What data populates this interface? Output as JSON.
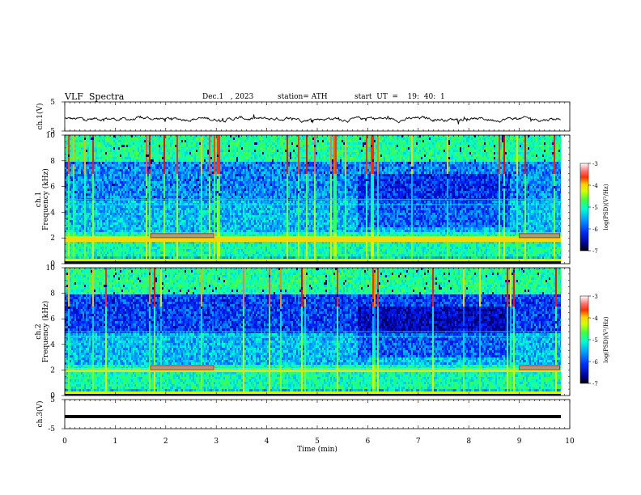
{
  "header": {
    "title": "VLF  Spectra",
    "date": "Dec.1   , 2023",
    "station": "station= ATH",
    "start_ut": "start  UT  =    19:  40:  1"
  },
  "chart_data": [
    {
      "type": "line",
      "panel": "ch1-waveform",
      "ylabel": "ch.1(V)",
      "ylim": [
        -5,
        5
      ],
      "yticks": [
        "5",
        "-5"
      ],
      "x_range_min": [
        0,
        9.8
      ],
      "description_values": "noisy voltage trace centred near 0 V, amplitude about ±1 V with spikes"
    },
    {
      "type": "heatmap",
      "panel": "ch1-spectrogram",
      "ylabel": "ch.1\nFrequency  (kHz)",
      "ylim_khz": [
        0,
        10
      ],
      "yticks": [
        "0",
        "2",
        "4",
        "6",
        "8",
        "10"
      ],
      "x_range_min": [
        0,
        9.8
      ],
      "colorbar": {
        "label": "log(PSD)(V²/Hz)",
        "ticks": [
          "-3",
          "-4",
          "-5",
          "-6",
          "-7"
        ],
        "range": [
          -7,
          -3
        ]
      }
    },
    {
      "type": "heatmap",
      "panel": "ch2-spectrogram",
      "ylabel": "ch.2\nFrequency  (kHz)",
      "ylim_khz": [
        0,
        10
      ],
      "yticks": [
        "0",
        "2",
        "4",
        "6",
        "8",
        "10"
      ],
      "x_range_min": [
        0,
        9.8
      ],
      "colorbar": {
        "label": "log(PSD)(V²/Hz)",
        "ticks": [
          "-3",
          "-4",
          "-5",
          "-6",
          "-7"
        ],
        "range": [
          -7,
          -3
        ]
      }
    },
    {
      "type": "line",
      "panel": "ch3-waveform",
      "ylabel": "ch.3(V)",
      "ylim": [
        -5,
        5
      ],
      "yticks": [
        "5",
        "-5"
      ],
      "x_range_min": [
        0,
        9.8
      ],
      "flat_value": 0
    }
  ],
  "xaxis": {
    "label": "Time  (min)",
    "ticks": [
      "0",
      "1",
      "2",
      "3",
      "4",
      "5",
      "6",
      "7",
      "8",
      "9",
      "10"
    ],
    "range": [
      0,
      10
    ]
  },
  "colors": {
    "colormap": [
      "#000000",
      "#0000a0",
      "#0020ff",
      "#00a0ff",
      "#00ffd0",
      "#40ff40",
      "#d0ff00",
      "#ffd000",
      "#ff4000",
      "#ff0000",
      "#ffb0b0",
      "#ffffff"
    ]
  }
}
